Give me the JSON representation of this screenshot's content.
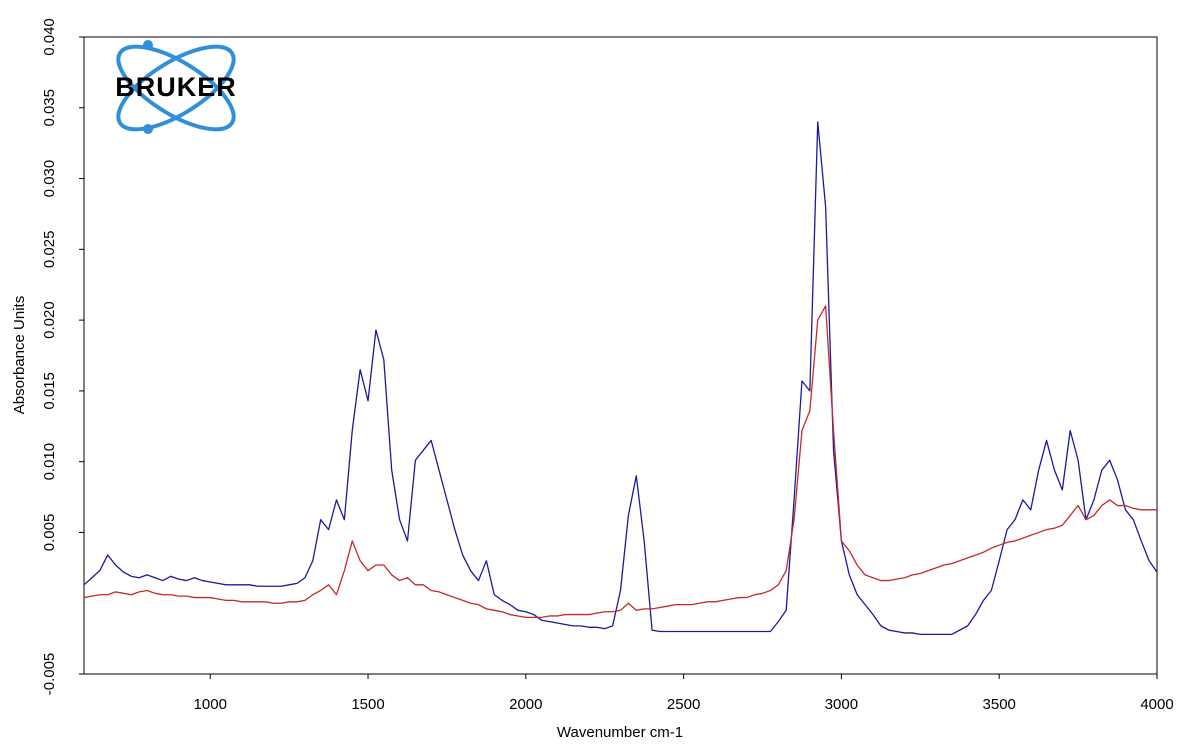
{
  "chart_data": {
    "type": "line",
    "logo": "BRUKER",
    "xlabel": "Wavenumber cm-1",
    "ylabel": "Absorbance Units",
    "xlim": [
      600,
      4000
    ],
    "ylim": [
      -0.005,
      0.04
    ],
    "xticks": [
      1000,
      1500,
      2000,
      2500,
      3000,
      3500,
      4000
    ],
    "yticks": [
      -0.005,
      0.005,
      {
        "value": 0.01,
        "label": "0.010"
      },
      0.015,
      {
        "value": 0.02,
        "label": "0.020"
      },
      0.025,
      {
        "value": 0.03,
        "label": "0.030"
      },
      0.035,
      {
        "value": 0.04,
        "label": "0.040"
      }
    ],
    "grid": false,
    "x": [
      600,
      625,
      650,
      675,
      700,
      725,
      750,
      775,
      800,
      825,
      850,
      875,
      900,
      925,
      950,
      975,
      1000,
      1025,
      1050,
      1075,
      1100,
      1125,
      1150,
      1175,
      1200,
      1225,
      1250,
      1275,
      1300,
      1325,
      1350,
      1375,
      1400,
      1425,
      1450,
      1475,
      1500,
      1525,
      1550,
      1575,
      1600,
      1625,
      1650,
      1675,
      1700,
      1725,
      1750,
      1775,
      1800,
      1825,
      1850,
      1875,
      1900,
      1925,
      1950,
      1975,
      2000,
      2025,
      2050,
      2075,
      2100,
      2125,
      2150,
      2175,
      2200,
      2225,
      2250,
      2275,
      2300,
      2325,
      2350,
      2375,
      2400,
      2425,
      2450,
      2475,
      2500,
      2525,
      2550,
      2575,
      2600,
      2625,
      2650,
      2675,
      2700,
      2725,
      2750,
      2775,
      2800,
      2825,
      2850,
      2875,
      2900,
      2925,
      2950,
      2975,
      3000,
      3025,
      3050,
      3075,
      3100,
      3125,
      3150,
      3175,
      3200,
      3225,
      3250,
      3275,
      3300,
      3325,
      3350,
      3375,
      3400,
      3425,
      3450,
      3475,
      3500,
      3525,
      3550,
      3575,
      3600,
      3625,
      3650,
      3675,
      3700,
      3725,
      3750,
      3775,
      3800,
      3825,
      3850,
      3875,
      3900,
      3925,
      3950,
      3975,
      4000
    ],
    "series": [
      {
        "color": "#1a1a9c",
        "values": [
          0.0013,
          0.0018,
          0.0023,
          0.0034,
          0.0027,
          0.0022,
          0.0019,
          0.0018,
          0.002,
          0.0018,
          0.0016,
          0.0019,
          0.0017,
          0.0016,
          0.0018,
          0.0016,
          0.0015,
          0.0014,
          0.0013,
          0.0013,
          0.0013,
          0.0013,
          0.0012,
          0.0012,
          0.0012,
          0.0012,
          0.0013,
          0.0014,
          0.0018,
          0.003,
          0.0059,
          0.0052,
          0.0073,
          0.0059,
          0.0122,
          0.0165,
          0.0143,
          0.0193,
          0.0172,
          0.0094,
          0.0059,
          0.0044,
          0.0101,
          0.0108,
          0.0115,
          0.0094,
          0.0073,
          0.0052,
          0.0034,
          0.0023,
          0.0016,
          0.003,
          0.0006,
          0.0002,
          -0.0001,
          -0.0005,
          -0.0006,
          -0.0008,
          -0.0012,
          -0.0013,
          -0.0014,
          -0.0015,
          -0.0016,
          -0.0016,
          -0.0017,
          -0.0017,
          -0.0018,
          -0.0016,
          0.0009,
          0.0062,
          0.009,
          0.0044,
          -0.0019,
          -0.002,
          -0.002,
          -0.002,
          -0.002,
          -0.002,
          -0.002,
          -0.002,
          -0.002,
          -0.002,
          -0.002,
          -0.002,
          -0.002,
          -0.002,
          -0.002,
          -0.002,
          -0.0013,
          -0.0005,
          0.0073,
          0.0157,
          0.015,
          0.034,
          0.028,
          0.0108,
          0.0044,
          0.002,
          0.0006,
          -0.0001,
          -0.0008,
          -0.0016,
          -0.0019,
          -0.002,
          -0.0021,
          -0.0021,
          -0.0022,
          -0.0022,
          -0.0022,
          -0.0022,
          -0.0022,
          -0.0019,
          -0.0016,
          -0.0008,
          0.0002,
          0.0009,
          0.003,
          0.0052,
          0.0059,
          0.0073,
          0.0066,
          0.0094,
          0.0115,
          0.0094,
          0.008,
          0.0122,
          0.0101,
          0.0059,
          0.0073,
          0.0094,
          0.0101,
          0.0087,
          0.0066,
          0.0059,
          0.0044,
          0.003,
          0.0022
        ]
      },
      {
        "color": "#c42a2a",
        "values": [
          0.0004,
          0.0005,
          0.0006,
          0.0006,
          0.0008,
          0.0007,
          0.0006,
          0.0008,
          0.0009,
          0.0007,
          0.0006,
          0.0006,
          0.0005,
          0.0005,
          0.0004,
          0.0004,
          0.0004,
          0.0003,
          0.0002,
          0.0002,
          0.0001,
          0.0001,
          0.0001,
          0.0001,
          0,
          0,
          0.0001,
          0.0001,
          0.0002,
          0.0006,
          0.0009,
          0.0013,
          0.0006,
          0.0023,
          0.0044,
          0.003,
          0.0023,
          0.0027,
          0.0027,
          0.002,
          0.0016,
          0.0018,
          0.0013,
          0.0013,
          0.0009,
          0.0008,
          0.0006,
          0.0004,
          0.0002,
          0,
          -0.0001,
          -0.0004,
          -0.0005,
          -0.0006,
          -0.0008,
          -0.0009,
          -0.001,
          -0.001,
          -0.001,
          -0.0009,
          -0.0009,
          -0.0008,
          -0.0008,
          -0.0008,
          -0.0008,
          -0.0007,
          -0.0006,
          -0.0006,
          -0.0005,
          0,
          -0.0005,
          -0.0004,
          -0.0004,
          -0.0003,
          -0.0002,
          -0.0001,
          -0.0001,
          -0.0001,
          0,
          0.0001,
          0.0001,
          0.0002,
          0.0003,
          0.0004,
          0.0004,
          0.0006,
          0.0007,
          0.0009,
          0.0013,
          0.0023,
          0.0059,
          0.0122,
          0.0136,
          0.02,
          0.021,
          0.0122,
          0.0044,
          0.0037,
          0.0027,
          0.002,
          0.0018,
          0.0016,
          0.0016,
          0.0017,
          0.0018,
          0.002,
          0.0021,
          0.0023,
          0.0025,
          0.0027,
          0.0028,
          0.003,
          0.0032,
          0.0034,
          0.0036,
          0.0039,
          0.0041,
          0.0043,
          0.0044,
          0.0046,
          0.0048,
          0.005,
          0.0052,
          0.0053,
          0.0055,
          0.0062,
          0.0069,
          0.0059,
          0.0062,
          0.0069,
          0.0073,
          0.0069,
          0.0069,
          0.0067,
          0.0066,
          0.0066,
          0.0066
        ]
      }
    ]
  }
}
